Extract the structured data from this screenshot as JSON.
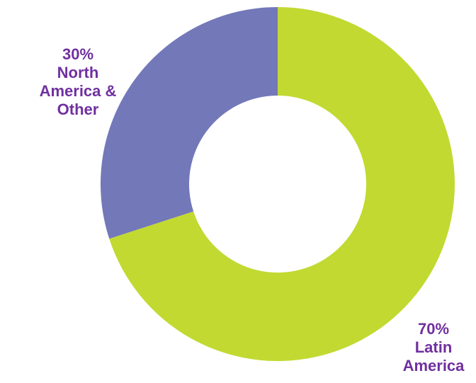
{
  "chart_data": {
    "type": "pie",
    "variant": "donut",
    "slices": [
      {
        "label_lines": [
          "70%",
          "Latin",
          "America"
        ],
        "value": 70,
        "color": "#c2d931"
      },
      {
        "label_lines": [
          "30%",
          "North",
          "America &",
          "Other"
        ],
        "value": 30,
        "color": "#7378b9"
      }
    ],
    "start": "12 o'clock",
    "direction": "clockwise",
    "legend": "none"
  },
  "colors": {
    "label_text": "#7030a0",
    "background": "#ffffff"
  }
}
